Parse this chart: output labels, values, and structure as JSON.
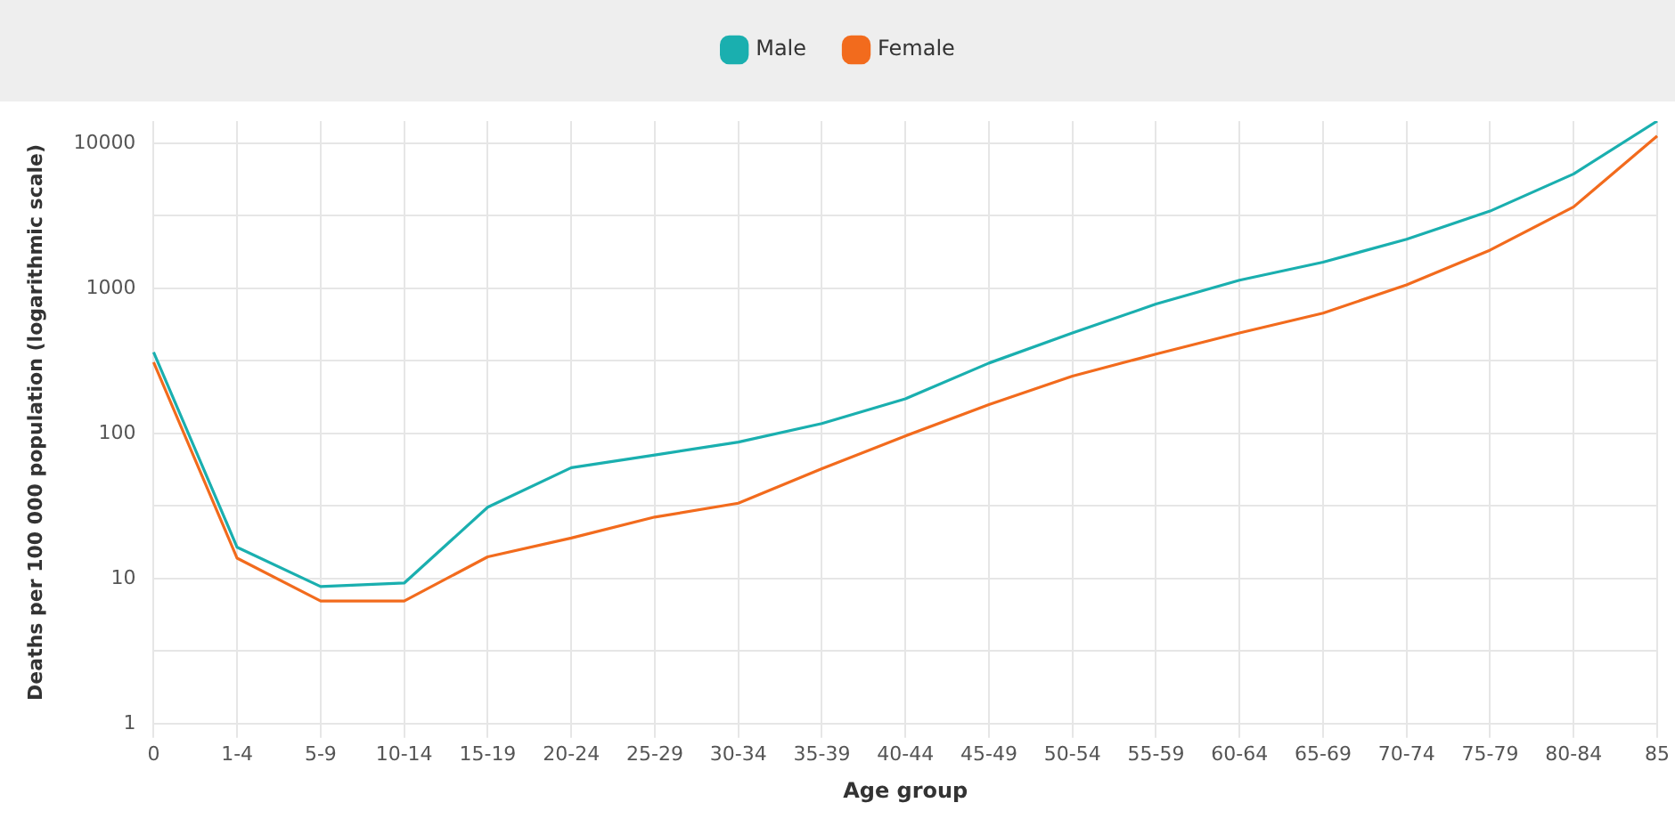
{
  "chart_data": {
    "type": "line",
    "xlabel": "Age group",
    "ylabel": "Deaths per 100 000 population (logarithmic scale)",
    "categories": [
      "0",
      "1-4",
      "5-9",
      "10-14",
      "15-19",
      "20-24",
      "25-29",
      "30-34",
      "35-39",
      "40-44",
      "45-49",
      "50-54",
      "55-59",
      "60-64",
      "65-69",
      "70-74",
      "75-79",
      "80-84",
      "85"
    ],
    "series": [
      {
        "name": "Male",
        "color": "#1aafaf",
        "values": [
          363,
          16.4,
          8.8,
          9.3,
          31,
          58,
          71,
          87,
          117,
          173,
          305,
          492,
          778,
          1137,
          1514,
          2175,
          3404,
          6135,
          14200
        ]
      },
      {
        "name": "Female",
        "color": "#f26b1d",
        "values": [
          309,
          13.8,
          7.0,
          7.0,
          14.1,
          19,
          26.5,
          33,
          57,
          96,
          158,
          248,
          352,
          492,
          674,
          1055,
          1833,
          3640,
          11200
        ]
      }
    ],
    "log": true,
    "ylim": [
      1,
      14200
    ],
    "yticks": [
      1,
      {
        "value": 3.162,
        "label": null
      },
      10,
      {
        "value": 31.62,
        "label": null
      },
      100,
      {
        "value": 316.2,
        "label": null
      },
      1000,
      {
        "value": 3162,
        "label": null
      },
      10000
    ],
    "grid": true,
    "legend": "top",
    "marker": "none",
    "line_style": "solid"
  }
}
